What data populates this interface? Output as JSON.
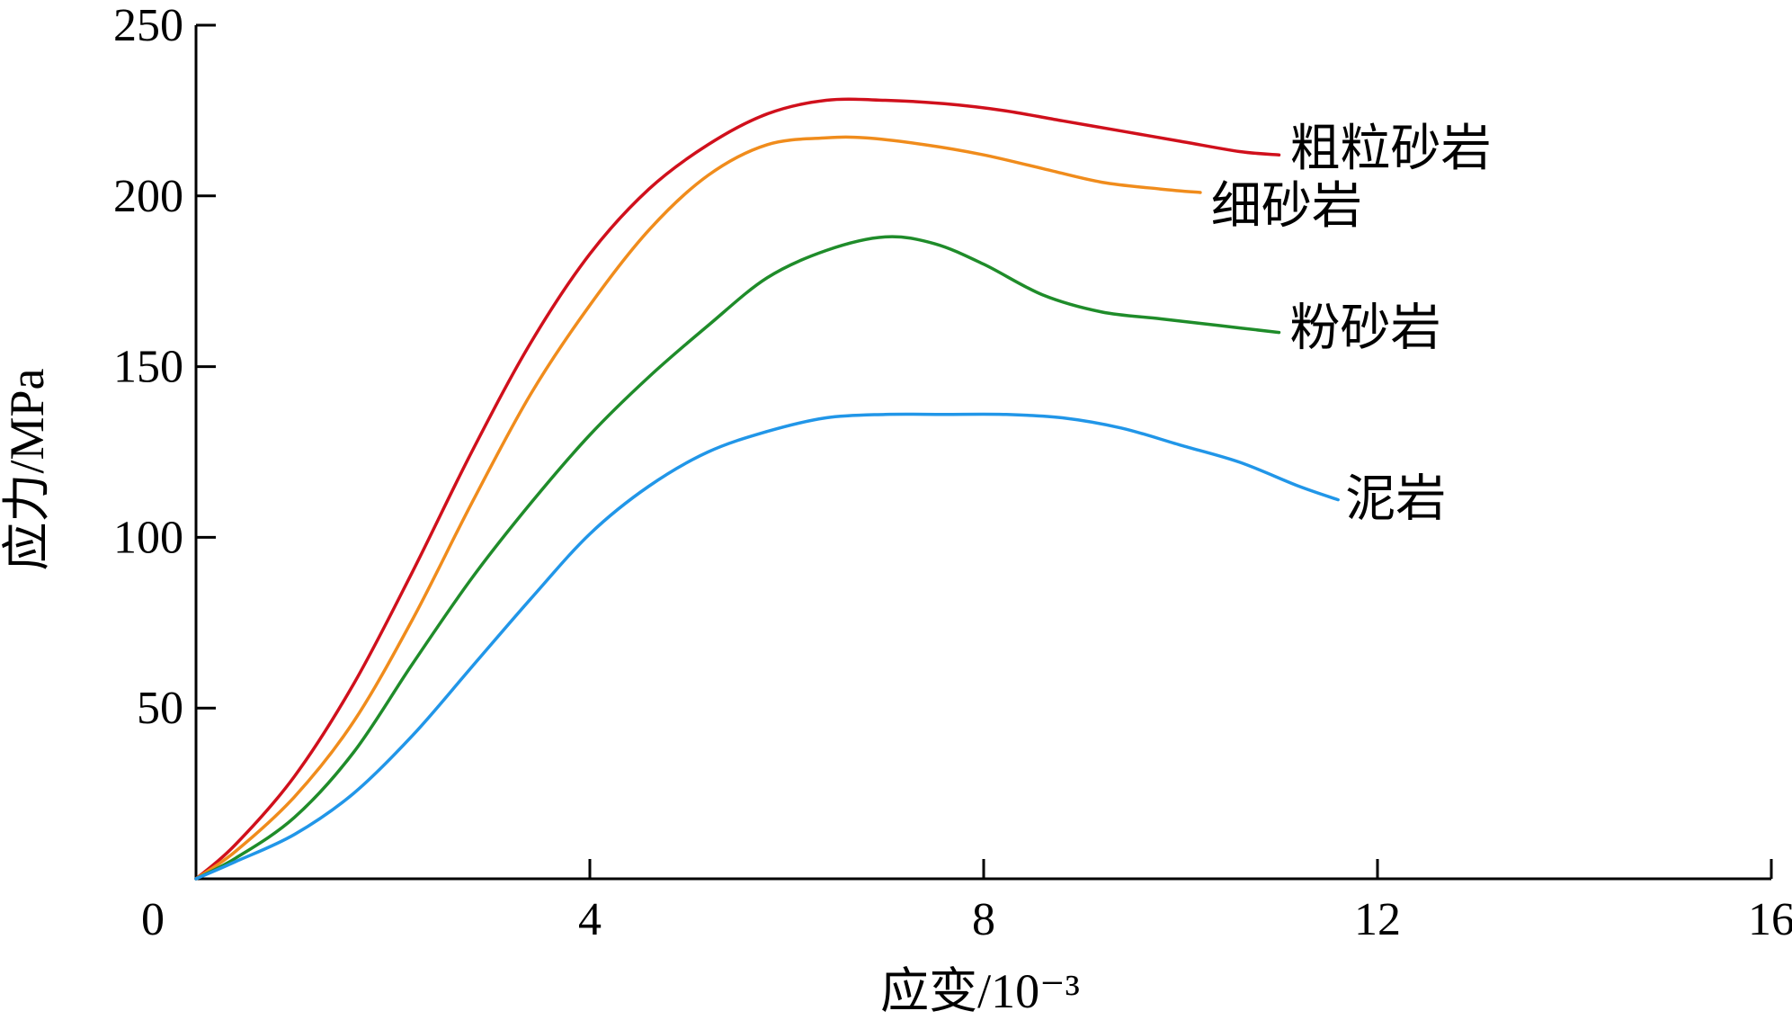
{
  "chart_data": {
    "type": "line",
    "xlabel": "应变/10⁻³",
    "ylabel": "应力/MPa",
    "xlim": [
      0,
      16
    ],
    "ylim": [
      0,
      250
    ],
    "x_ticks": [
      "0",
      "4",
      "8",
      "12",
      "16"
    ],
    "y_ticks": [
      "50",
      "100",
      "150",
      "200",
      "250"
    ],
    "grid": false,
    "legend": "inline-right-of-line-ends",
    "series": [
      {
        "name": "粗粒砂岩",
        "color": "#d0101c",
        "x": [
          0,
          0.4,
          1.0,
          1.6,
          2.2,
          2.8,
          3.4,
          4.0,
          4.6,
          5.2,
          5.8,
          6.4,
          7.0,
          7.6,
          8.2,
          8.8,
          9.4,
          10.0,
          10.6,
          11.0
        ],
        "y": [
          0,
          10,
          30,
          57,
          90,
          125,
          157,
          183,
          202,
          215,
          224,
          228,
          228,
          227,
          225,
          222,
          219,
          216,
          213,
          212
        ]
      },
      {
        "name": "细砂岩",
        "color": "#f08c1c",
        "x": [
          0,
          0.4,
          1.0,
          1.6,
          2.2,
          2.8,
          3.4,
          4.0,
          4.6,
          5.2,
          5.8,
          6.4,
          6.8,
          7.4,
          8.0,
          8.6,
          9.2,
          9.8,
          10.2
        ],
        "y": [
          0,
          8,
          24,
          46,
          76,
          110,
          142,
          168,
          190,
          206,
          215,
          217,
          217,
          215,
          212,
          208,
          204,
          202,
          201
        ]
      },
      {
        "name": "粉砂岩",
        "color": "#1f8c2a",
        "x": [
          0,
          0.4,
          1.0,
          1.6,
          2.2,
          2.8,
          3.4,
          4.0,
          4.6,
          5.2,
          5.8,
          6.4,
          7.0,
          7.5,
          8.0,
          8.6,
          9.2,
          9.8,
          10.4,
          11.0
        ],
        "y": [
          0,
          6,
          18,
          37,
          63,
          88,
          110,
          130,
          147,
          162,
          176,
          184,
          188,
          186,
          180,
          171,
          166,
          164,
          162,
          160
        ]
      },
      {
        "name": "泥岩",
        "color": "#2196e8",
        "x": [
          0,
          0.4,
          1.0,
          1.6,
          2.2,
          2.8,
          3.4,
          4.0,
          4.6,
          5.2,
          5.8,
          6.4,
          7.0,
          7.6,
          8.2,
          8.8,
          9.4,
          10.0,
          10.6,
          11.2,
          11.6
        ],
        "y": [
          0,
          5,
          13,
          25,
          42,
          62,
          82,
          101,
          115,
          125,
          131,
          135,
          136,
          136,
          136,
          135,
          132,
          127,
          122,
          115,
          111
        ]
      }
    ]
  }
}
